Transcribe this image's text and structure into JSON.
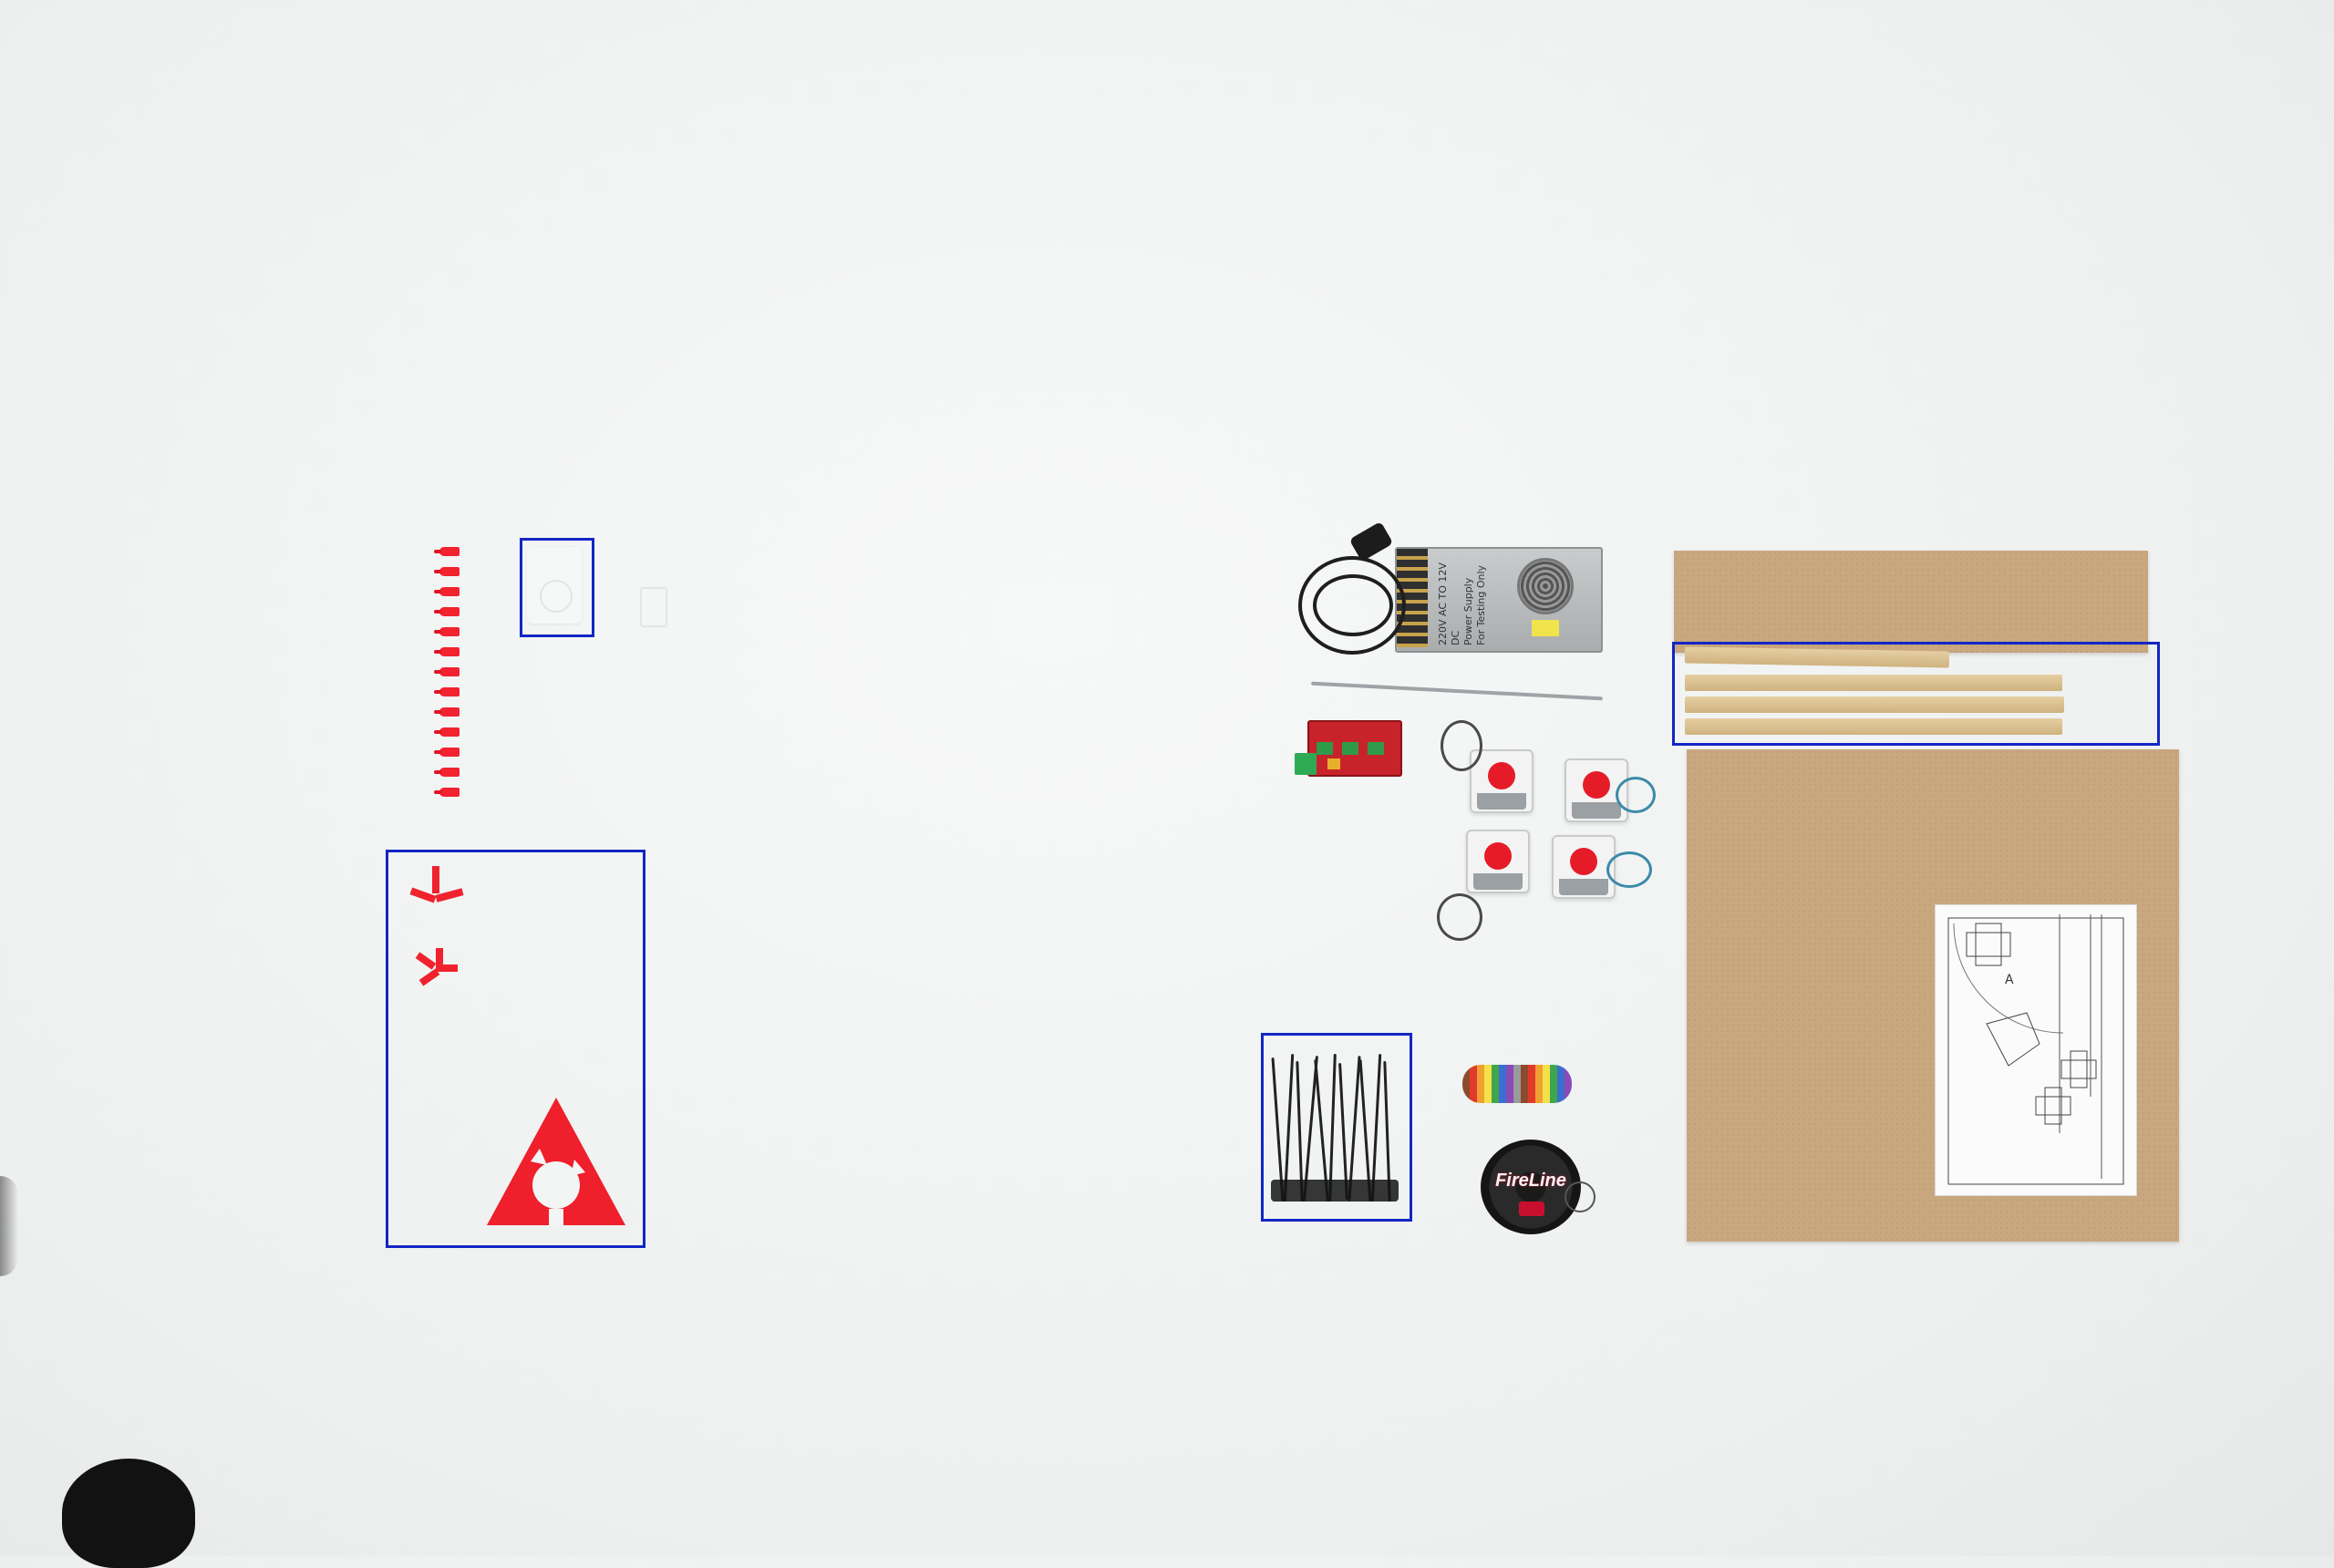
{
  "scene": {
    "description_type": "photo",
    "background_color": "#eef0f0",
    "box_color": "#1326c4"
  },
  "highlight_boxes": [
    {
      "name": "pen-holder-box",
      "content": "white 3d-printed pen holder"
    },
    {
      "name": "red-printed-parts-box",
      "content": "red 3d-printed triangle and clips"
    },
    {
      "name": "wooden-sticks-box",
      "content": "four wooden sticks"
    },
    {
      "name": "zip-ties-box",
      "content": "black zip ties"
    }
  ],
  "psu_label": {
    "line1": "220V AC TO 12V DC",
    "line2": "Power Supply",
    "line3": "For Testing Only"
  },
  "spool_label": "FireLine",
  "paper_label": "A"
}
